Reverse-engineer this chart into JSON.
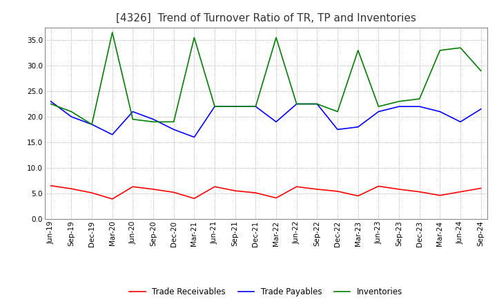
{
  "title": "[4326]  Trend of Turnover Ratio of TR, TP and Inventories",
  "ylim": [
    0.0,
    37.5
  ],
  "yticks": [
    0.0,
    5.0,
    10.0,
    15.0,
    20.0,
    25.0,
    30.0,
    35.0
  ],
  "x_labels": [
    "Jun-19",
    "Sep-19",
    "Dec-19",
    "Mar-20",
    "Jun-20",
    "Sep-20",
    "Dec-20",
    "Mar-21",
    "Jun-21",
    "Sep-21",
    "Dec-21",
    "Mar-22",
    "Jun-22",
    "Sep-22",
    "Dec-22",
    "Mar-23",
    "Jun-23",
    "Sep-23",
    "Dec-23",
    "Mar-24",
    "Jun-24",
    "Sep-24"
  ],
  "trade_receivables": [
    6.5,
    5.9,
    5.1,
    3.9,
    6.3,
    5.8,
    5.2,
    4.0,
    6.3,
    5.5,
    5.1,
    4.1,
    6.3,
    5.8,
    5.4,
    4.5,
    6.4,
    5.8,
    5.3,
    4.6,
    5.3,
    6.0
  ],
  "trade_payables": [
    23.0,
    20.0,
    18.5,
    16.5,
    21.0,
    19.5,
    17.5,
    16.0,
    22.0,
    22.0,
    22.0,
    19.0,
    22.5,
    22.5,
    17.5,
    18.0,
    21.0,
    22.0,
    22.0,
    21.0,
    19.0,
    21.5
  ],
  "inventories": [
    22.5,
    21.0,
    18.5,
    36.5,
    19.5,
    19.0,
    19.0,
    35.5,
    22.0,
    22.0,
    22.0,
    35.5,
    22.5,
    22.5,
    21.0,
    33.0,
    22.0,
    23.0,
    23.5,
    33.0,
    33.5,
    29.0
  ],
  "color_tr": "#ff0000",
  "color_tp": "#0000ff",
  "color_inv": "#008000",
  "legend_labels": [
    "Trade Receivables",
    "Trade Payables",
    "Inventories"
  ],
  "background_color": "#ffffff",
  "grid_color": "#999999",
  "title_color": "#333333",
  "title_fontsize": 11,
  "tick_fontsize": 7.5,
  "linewidth": 1.2
}
